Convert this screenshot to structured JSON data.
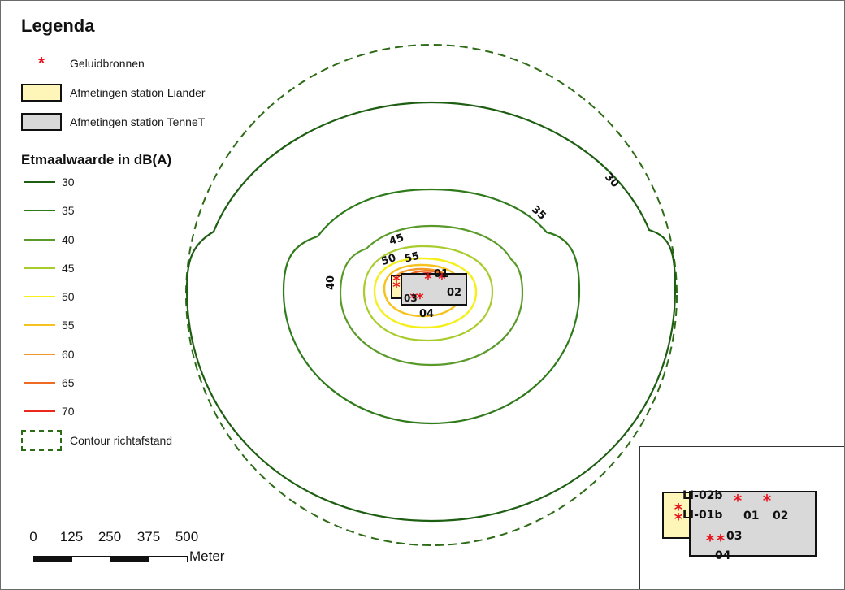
{
  "legend": {
    "title": "Legenda",
    "items": [
      {
        "label": "Geluidbronnen",
        "symbol": "*",
        "color": "#e8131c"
      },
      {
        "label": "Afmetingen station Liander",
        "fill": "#fdf6b8"
      },
      {
        "label": "Afmetingen station TenneT",
        "fill": "#d9d9d9"
      }
    ],
    "contour_heading": "Etmaalwaarde in dB(A)",
    "contours": [
      {
        "label": "30",
        "color": "#1d5e12"
      },
      {
        "label": "35",
        "color": "#2f7a1a"
      },
      {
        "label": "40",
        "color": "#5a9a2a"
      },
      {
        "label": "45",
        "color": "#a8cc2c"
      },
      {
        "label": "50",
        "color": "#f5ef1c"
      },
      {
        "label": "55",
        "color": "#f6c21e"
      },
      {
        "label": "60",
        "color": "#f2992a"
      },
      {
        "label": "65",
        "color": "#ef6a22"
      },
      {
        "label": "70",
        "color": "#e8291c"
      }
    ],
    "distance_contour": {
      "label": "Contour richtafstand",
      "color": "#2d6b16"
    }
  },
  "scalebar": {
    "ticks": [
      "0",
      "125",
      "250",
      "375",
      "500"
    ],
    "unit": "Meter"
  },
  "map": {
    "contour_labels": [
      "30",
      "35",
      "40",
      "45",
      "50",
      "55"
    ],
    "source_labels": [
      "01",
      "02",
      "03",
      "04"
    ]
  },
  "inset": {
    "source_labels": [
      "LI-02b",
      "LI-01b",
      "01",
      "02",
      "03",
      "04"
    ]
  }
}
